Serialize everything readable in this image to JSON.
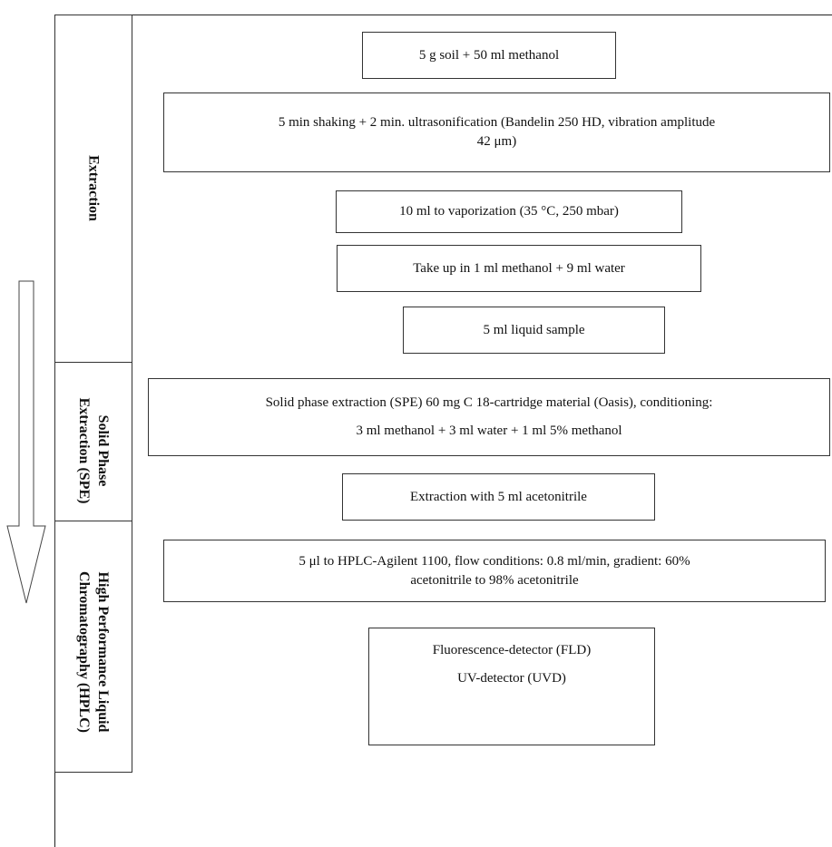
{
  "stages": {
    "extraction": "Extraction",
    "spe_line1": "Solid Phase",
    "spe_line2": "Extraction (SPE)",
    "hplc_line1": "High Performance Liquid",
    "hplc_line2": "Chromatography (HPLC)"
  },
  "steps": {
    "s1": "5 g soil + 50 ml methanol",
    "s2_line1": "5 min shaking + 2 min. ultrasonification (Bandelin 250 HD, vibration amplitude",
    "s2_line2": "42 μm)",
    "s3": "10 ml to vaporization (35 °C, 250 mbar)",
    "s4": "Take up in 1 ml methanol + 9 ml water",
    "s5": "5 ml liquid sample",
    "s6_line1": "Solid phase extraction (SPE) 60 mg C 18-cartridge material (Oasis), conditioning:",
    "s6_line2": "3 ml methanol + 3 ml water + 1 ml 5% methanol",
    "s7": "Extraction with 5 ml acetonitrile",
    "s8_line1": "5 μl to HPLC-Agilent 1100, flow conditions: 0.8 ml/min, gradient: 60%",
    "s8_line2": "acetonitrile to 98% acetonitrile",
    "s9_line1": "Fluorescence-detector (FLD)",
    "s9_line2": "UV-detector (UVD)"
  }
}
